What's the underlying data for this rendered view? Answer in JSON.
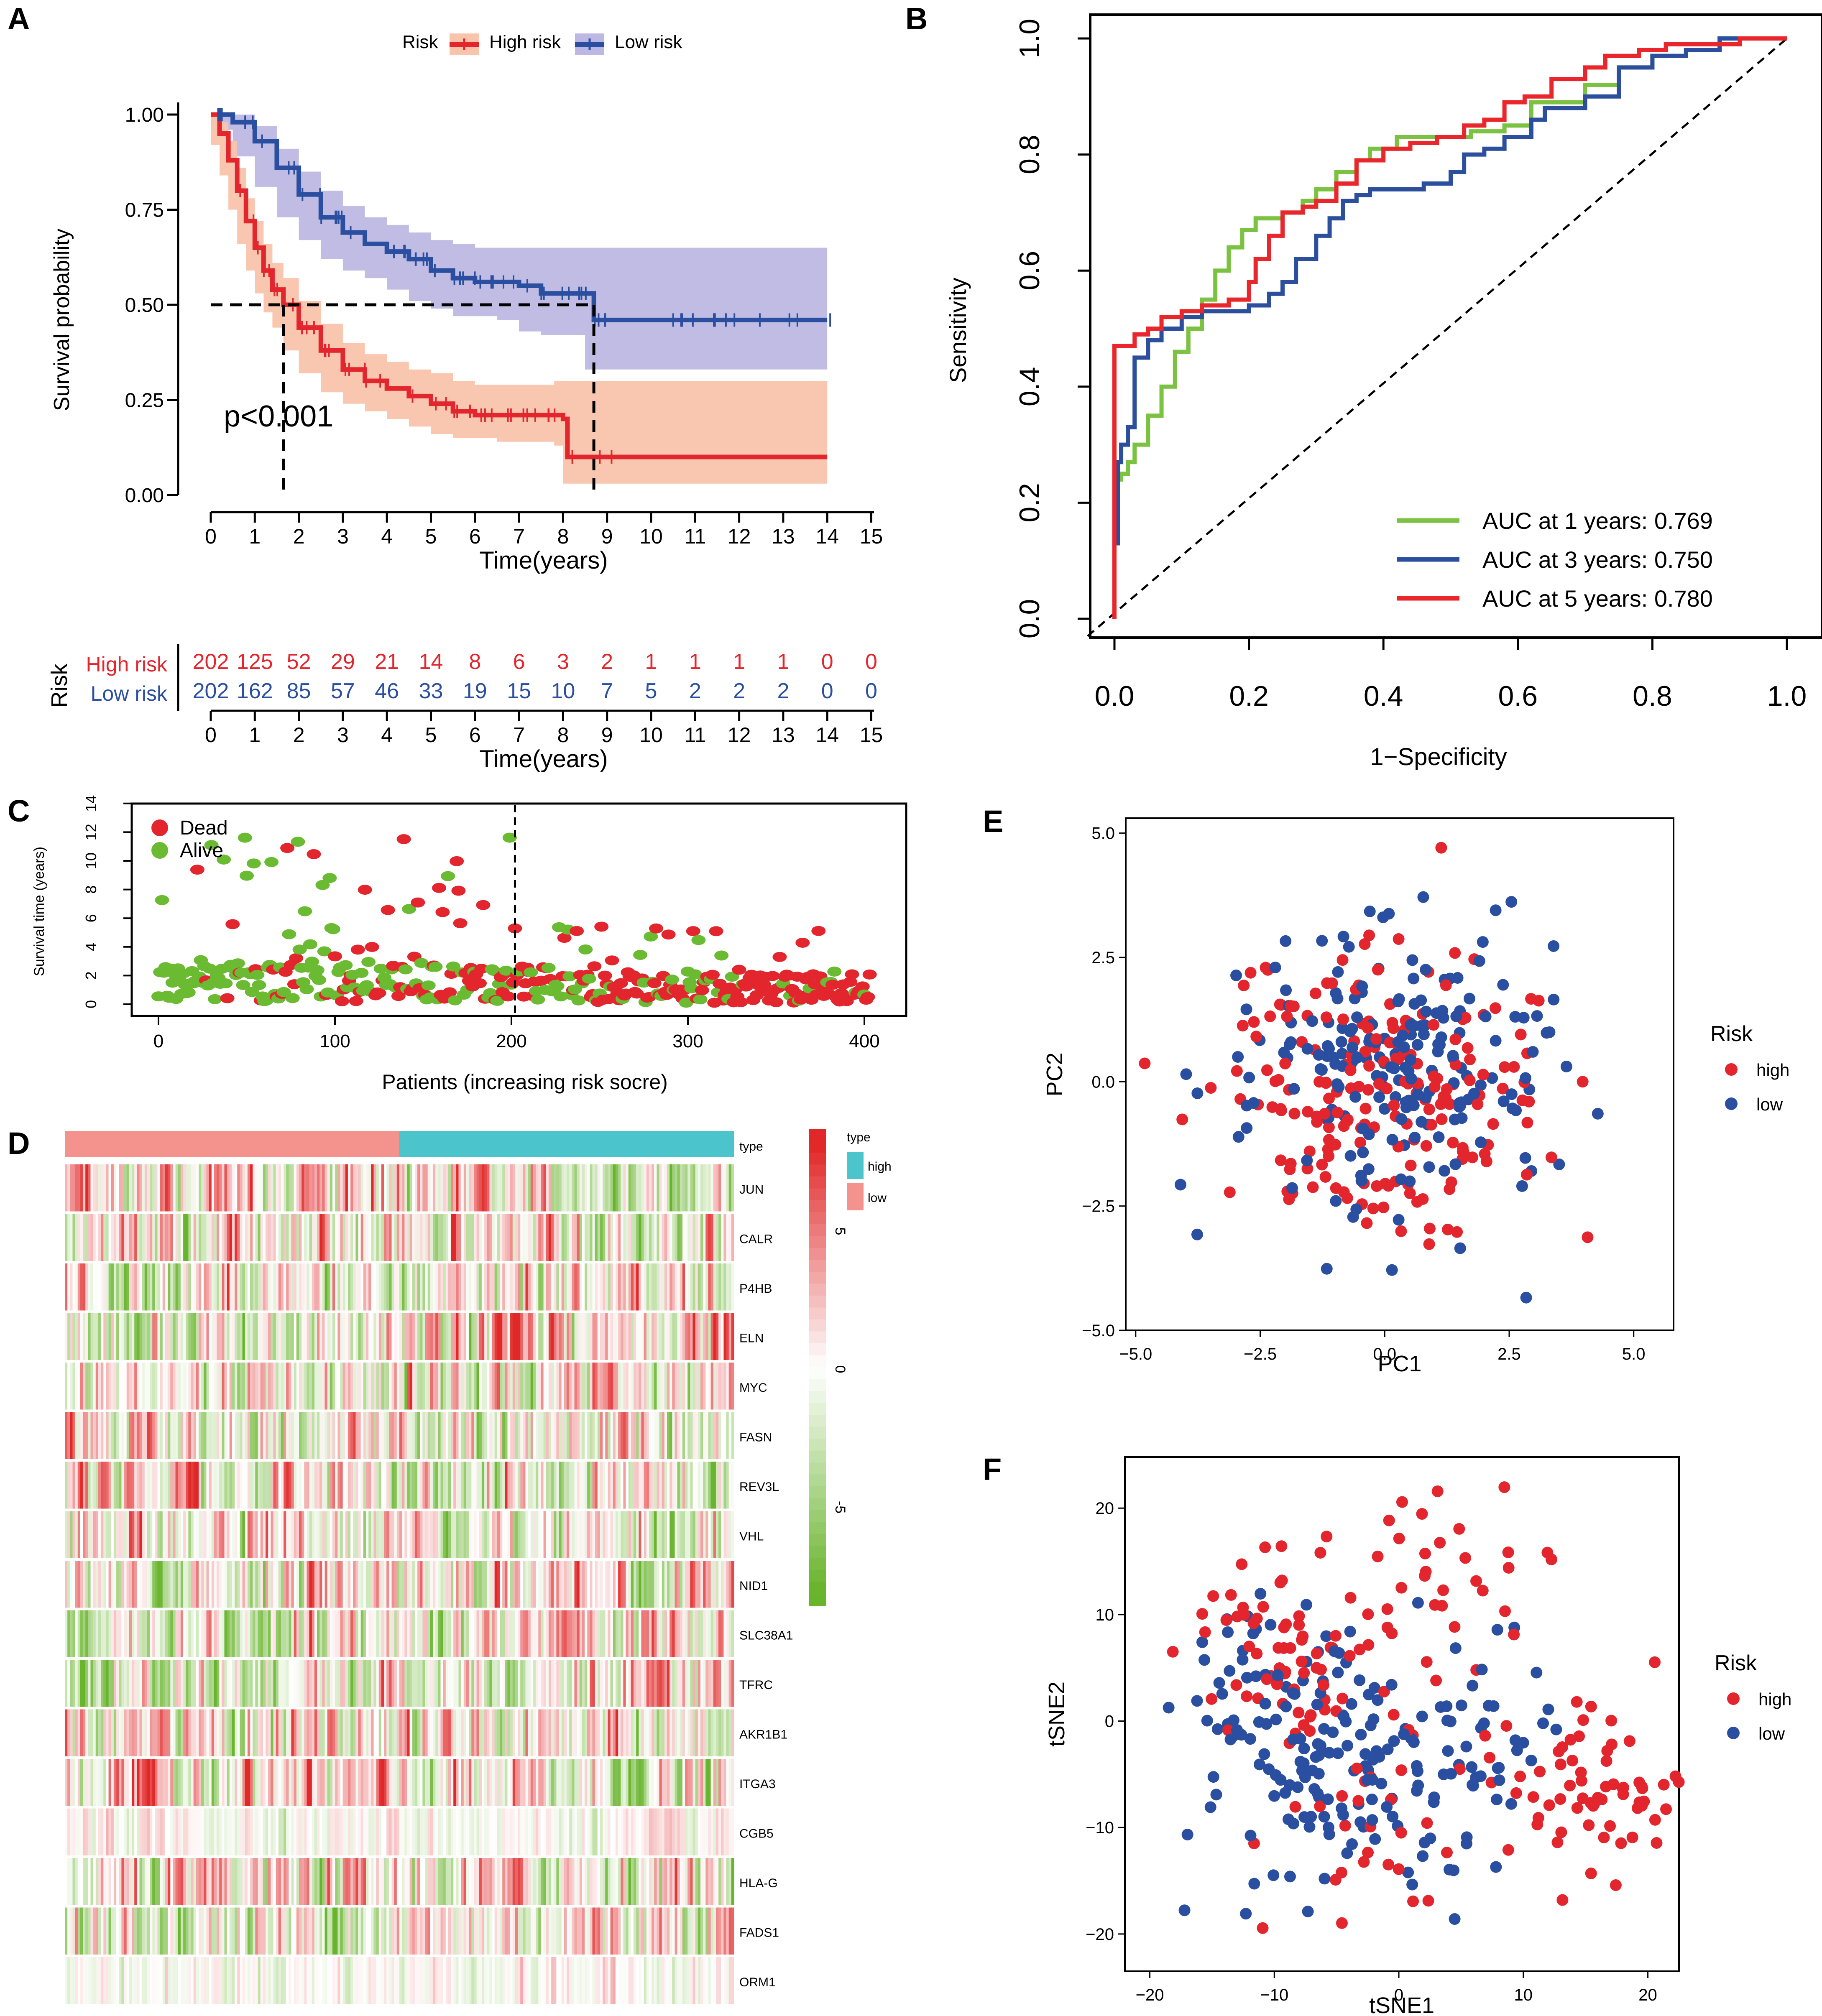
{
  "panels": {
    "A": "A",
    "B": "B",
    "C": "C",
    "D": "D",
    "E": "E",
    "F": "F"
  },
  "colors": {
    "high": "#e3262d",
    "low": "#2a4ea0",
    "high_band": "#f9c4ac",
    "low_band": "#bdb8e3",
    "green": "#6aba32",
    "roc1": "#7cc242",
    "roc3": "#2c4f9d",
    "roc5": "#e8262c",
    "teal": "#4cc4cc",
    "salmon": "#f4938d"
  },
  "chart_data": [
    {
      "id": "A",
      "type": "line",
      "title": "",
      "legend_title": "Risk",
      "legend": [
        "High risk",
        "Low risk"
      ],
      "xlabel": "Time(years)",
      "ylabel": "Survival probability",
      "xlim": [
        0,
        15
      ],
      "ylim": [
        0,
        1
      ],
      "xticks": [
        "0",
        "1",
        "2",
        "3",
        "4",
        "5",
        "6",
        "7",
        "8",
        "9",
        "10",
        "11",
        "12",
        "13",
        "14",
        "15"
      ],
      "yticks": [
        "0.00",
        "0.25",
        "0.50",
        "0.75",
        "1.00"
      ],
      "pvalue": "p<0.001",
      "median_survival": {
        "High risk": 1.65,
        "Low risk": 8.7
      },
      "series": [
        {
          "name": "High risk",
          "x": [
            0,
            0.2,
            0.4,
            0.6,
            0.8,
            1.0,
            1.2,
            1.4,
            1.65,
            2.0,
            2.5,
            3.0,
            3.5,
            4.0,
            4.5,
            5.0,
            5.5,
            6.0,
            6.5,
            7.0,
            7.5,
            7.8,
            8.0,
            8.1,
            9.0,
            10,
            11,
            12,
            13,
            14
          ],
          "values": [
            1.0,
            0.95,
            0.88,
            0.8,
            0.72,
            0.65,
            0.59,
            0.54,
            0.5,
            0.44,
            0.38,
            0.33,
            0.3,
            0.28,
            0.26,
            0.24,
            0.22,
            0.21,
            0.21,
            0.21,
            0.21,
            0.21,
            0.2,
            0.1,
            0.1,
            0.1,
            0.1,
            0.1,
            0.1,
            0.1
          ],
          "upper": [
            1.0,
            0.98,
            0.93,
            0.86,
            0.78,
            0.72,
            0.66,
            0.61,
            0.57,
            0.51,
            0.45,
            0.4,
            0.37,
            0.35,
            0.33,
            0.32,
            0.3,
            0.29,
            0.29,
            0.29,
            0.29,
            0.3,
            0.3,
            0.3,
            0.3,
            0.3,
            0.3,
            0.3,
            0.3,
            0.3
          ],
          "lower": [
            1.0,
            0.92,
            0.84,
            0.75,
            0.66,
            0.59,
            0.53,
            0.48,
            0.44,
            0.38,
            0.32,
            0.27,
            0.24,
            0.22,
            0.2,
            0.18,
            0.16,
            0.15,
            0.15,
            0.14,
            0.14,
            0.14,
            0.13,
            0.03,
            0.03,
            0.03,
            0.03,
            0.03,
            0.03,
            0.03
          ]
        },
        {
          "name": "Low risk",
          "x": [
            0,
            0.5,
            1.0,
            1.5,
            2.0,
            2.5,
            3.0,
            3.5,
            4.0,
            4.5,
            5.0,
            5.5,
            6.0,
            6.5,
            7.0,
            7.5,
            8.0,
            8.5,
            8.7,
            9.0,
            10,
            11,
            12,
            13,
            14
          ],
          "values": [
            1.0,
            0.98,
            0.93,
            0.86,
            0.79,
            0.73,
            0.69,
            0.66,
            0.64,
            0.62,
            0.59,
            0.57,
            0.56,
            0.56,
            0.55,
            0.53,
            0.53,
            0.53,
            0.46,
            0.46,
            0.46,
            0.46,
            0.46,
            0.46,
            0.46
          ],
          "upper": [
            1.0,
            1.0,
            0.97,
            0.91,
            0.85,
            0.8,
            0.76,
            0.73,
            0.71,
            0.69,
            0.67,
            0.66,
            0.65,
            0.65,
            0.65,
            0.65,
            0.65,
            0.65,
            0.65,
            0.65,
            0.65,
            0.65,
            0.65,
            0.65,
            0.65
          ],
          "lower": [
            1.0,
            0.96,
            0.89,
            0.81,
            0.73,
            0.67,
            0.62,
            0.59,
            0.57,
            0.54,
            0.51,
            0.49,
            0.47,
            0.47,
            0.46,
            0.43,
            0.42,
            0.42,
            0.33,
            0.33,
            0.33,
            0.33,
            0.33,
            0.33,
            0.33
          ]
        }
      ],
      "risk_table": {
        "title": "Risk",
        "xlabel": "Time(years)",
        "rows": [
          {
            "name": "High risk",
            "values": [
              "202",
              "125",
              "52",
              "29",
              "21",
              "14",
              "8",
              "6",
              "3",
              "2",
              "1",
              "1",
              "1",
              "1",
              "0",
              "0"
            ]
          },
          {
            "name": "Low risk",
            "values": [
              "202",
              "162",
              "85",
              "57",
              "46",
              "33",
              "19",
              "15",
              "10",
              "7",
              "5",
              "2",
              "2",
              "2",
              "0",
              "0"
            ]
          }
        ]
      }
    },
    {
      "id": "B",
      "type": "line",
      "title": "",
      "xlabel": "1−Specificity",
      "ylabel": "Sensitivity",
      "xlim": [
        0,
        1
      ],
      "ylim": [
        0,
        1
      ],
      "xticks": [
        "0.0",
        "0.2",
        "0.4",
        "0.6",
        "0.8",
        "1.0"
      ],
      "yticks": [
        "0.0",
        "0.2",
        "0.4",
        "0.6",
        "0.8",
        "1.0"
      ],
      "series": [
        {
          "name": "AUC at 1 years: 0.769",
          "x": [
            0,
            0.005,
            0.01,
            0.02,
            0.03,
            0.05,
            0.07,
            0.09,
            0.11,
            0.13,
            0.15,
            0.17,
            0.19,
            0.21,
            0.23,
            0.25,
            0.28,
            0.3,
            0.33,
            0.36,
            0.38,
            0.42,
            0.46,
            0.48,
            0.53,
            0.58,
            0.62,
            0.67,
            0.7,
            0.75,
            0.8,
            0.85,
            0.9,
            1.0
          ],
          "values": [
            0,
            0.22,
            0.24,
            0.25,
            0.27,
            0.3,
            0.35,
            0.4,
            0.46,
            0.5,
            0.55,
            0.6,
            0.64,
            0.67,
            0.69,
            0.69,
            0.7,
            0.72,
            0.74,
            0.77,
            0.79,
            0.81,
            0.83,
            0.83,
            0.83,
            0.84,
            0.85,
            0.89,
            0.89,
            0.92,
            0.95,
            0.97,
            0.98,
            1.0
          ]
        },
        {
          "name": "AUC at 3 years: 0.750",
          "x": [
            0,
            0.005,
            0.01,
            0.02,
            0.03,
            0.05,
            0.07,
            0.1,
            0.13,
            0.17,
            0.2,
            0.23,
            0.25,
            0.27,
            0.3,
            0.32,
            0.34,
            0.36,
            0.38,
            0.42,
            0.46,
            0.5,
            0.52,
            0.55,
            0.58,
            0.62,
            0.64,
            0.7,
            0.75,
            0.8,
            0.85,
            0.9,
            1.0
          ],
          "values": [
            0,
            0.13,
            0.27,
            0.3,
            0.33,
            0.45,
            0.48,
            0.5,
            0.52,
            0.53,
            0.53,
            0.54,
            0.56,
            0.58,
            0.62,
            0.66,
            0.69,
            0.72,
            0.73,
            0.74,
            0.74,
            0.75,
            0.77,
            0.8,
            0.81,
            0.83,
            0.86,
            0.88,
            0.9,
            0.95,
            0.97,
            0.98,
            1.0
          ]
        },
        {
          "name": "AUC at 5 years: 0.780",
          "x": [
            0,
            0.005,
            0.01,
            0.03,
            0.05,
            0.07,
            0.1,
            0.13,
            0.17,
            0.2,
            0.21,
            0.23,
            0.25,
            0.28,
            0.3,
            0.33,
            0.36,
            0.4,
            0.44,
            0.48,
            0.52,
            0.55,
            0.58,
            0.61,
            0.65,
            0.7,
            0.73,
            0.78,
            0.82,
            0.87,
            0.93,
            1.0
          ],
          "values": [
            0,
            0.47,
            0.47,
            0.47,
            0.49,
            0.5,
            0.52,
            0.53,
            0.54,
            0.55,
            0.58,
            0.62,
            0.66,
            0.7,
            0.71,
            0.72,
            0.75,
            0.79,
            0.81,
            0.82,
            0.83,
            0.85,
            0.86,
            0.89,
            0.9,
            0.93,
            0.95,
            0.97,
            0.98,
            0.99,
            0.99,
            1.0
          ]
        }
      ]
    },
    {
      "id": "C",
      "type": "scatter",
      "title": "",
      "xlabel": "Patients (increasing risk socre)",
      "ylabel": "Survival time (years)",
      "xlim": [
        0,
        404
      ],
      "ylim": [
        0,
        14
      ],
      "xticks": [
        "0",
        "100",
        "200",
        "300",
        "400"
      ],
      "yticks": [
        "0",
        "2",
        "4",
        "6",
        "8",
        "10",
        "12",
        "14"
      ],
      "cutoff": 202,
      "legend": [
        "Dead",
        "Alive"
      ]
    },
    {
      "id": "D",
      "type": "heatmap",
      "title": "",
      "genes": [
        "JUN",
        "CALR",
        "P4HB",
        "ELN",
        "MYC",
        "FASN",
        "REV3L",
        "VHL",
        "NID1",
        "SLC38A1",
        "TFRC",
        "AKR1B1",
        "ITGA3",
        "CGB5",
        "HLA-G",
        "FADS1",
        "ORM1"
      ],
      "annotation_label": "type",
      "legend_title": "type",
      "legend": [
        "high",
        "low"
      ],
      "colorbar_ticks": [
        "5",
        "0",
        "-5"
      ]
    },
    {
      "id": "E",
      "type": "scatter",
      "title": "",
      "xlabel": "PC1",
      "ylabel": "PC2",
      "xlim": [
        -5.2,
        5.8
      ],
      "ylim": [
        -5.0,
        5.3
      ],
      "xticks": [
        "−5.0",
        "−2.5",
        "0.0",
        "2.5",
        "5.0"
      ],
      "yticks": [
        "−5.0",
        "−2.5",
        "0.0",
        "2.5",
        "5.0"
      ],
      "legend_title": "Risk",
      "legend": [
        "high",
        "low"
      ]
    },
    {
      "id": "F",
      "type": "scatter",
      "title": "",
      "xlabel": "tSNE1",
      "ylabel": "tSNE2",
      "xlim": [
        -22,
        22.5
      ],
      "ylim": [
        -23.5,
        24.8
      ],
      "xticks": [
        "−20",
        "−10",
        "0",
        "10",
        "20"
      ],
      "yticks": [
        "−20",
        "−10",
        "0",
        "10",
        "20"
      ],
      "legend_title": "Risk",
      "legend": [
        "high",
        "low"
      ]
    }
  ]
}
